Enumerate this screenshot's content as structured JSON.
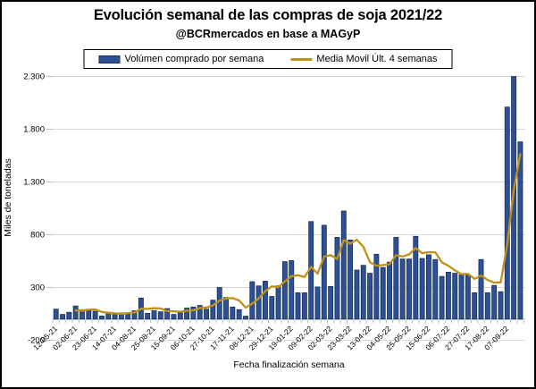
{
  "header": {
    "title": "Evolución semanal de las compras de soja 2021/22",
    "subtitle": "@BCRmercados en base a MAGyP"
  },
  "legend": {
    "bar_label": "Volúmen comprado por semana",
    "line_label": "Media Movil Últ. 4 semanas"
  },
  "axes": {
    "y_label": "Miles de toneladas",
    "x_label": "Fecha finalización semana"
  },
  "colors": {
    "bar_fill": "#2C5197",
    "bar_stroke": "#1C2E52",
    "line": "#C29118",
    "gridline": "#D9D9D9",
    "axis": "#BFBFBF",
    "text": "#000000"
  },
  "chart_data": {
    "type": "bar",
    "title": "Evolución semanal de las compras de soja 2021/22",
    "subtitle": "@BCRmercados en base a MAGyP",
    "xlabel": "Fecha finalización semana",
    "ylabel": "Miles de toneladas",
    "ylim": [
      -200,
      2300
    ],
    "grid": true,
    "legend_position": "top",
    "y_ticks": [
      -200,
      300,
      800,
      1300,
      1800,
      2300
    ],
    "y_tick_labels": [
      "-200",
      "300",
      "800",
      "1.300",
      "1.800",
      "2.300"
    ],
    "x_tick_every": 3,
    "x_tick_labels": [
      "12-05-21",
      "02-06-21",
      "23-06-21",
      "14-07-21",
      "04-08-21",
      "25-08-21",
      "15-09-21",
      "06-10-21",
      "27-10-21",
      "17-11-21",
      "08-12-21",
      "29-12-21",
      "19-01-22",
      "09-02-22",
      "02-03-22",
      "23-03-22",
      "13-04-22",
      "04-05-22",
      "25-05-22",
      "15-06-22",
      "06-07-22",
      "27-07-22",
      "17-08-22",
      "07-09-22"
    ],
    "series": [
      {
        "name": "Volúmen comprado por semana",
        "type": "bar",
        "values": [
          95,
          45,
          65,
          125,
          90,
          80,
          75,
          30,
          60,
          55,
          60,
          55,
          80,
          200,
          55,
          80,
          70,
          100,
          45,
          70,
          105,
          115,
          130,
          95,
          180,
          300,
          205,
          115,
          90,
          28,
          355,
          315,
          360,
          215,
          315,
          545,
          555,
          250,
          250,
          925,
          305,
          890,
          310,
          775,
          1025,
          750,
          465,
          510,
          435,
          615,
          490,
          540,
          775,
          570,
          570,
          785,
          575,
          610,
          565,
          405,
          445,
          435,
          420,
          420,
          250,
          565,
          250,
          320,
          260,
          2010,
          2300,
          1680
        ]
      },
      {
        "name": "Media Movil Últ. 4 semanas",
        "type": "line",
        "values": [
          null,
          null,
          null,
          82.5,
          81.3,
          90,
          92.5,
          68.8,
          61.3,
          55,
          51.3,
          57.5,
          62.5,
          98.8,
          97.5,
          103.8,
          101.3,
          76.3,
          73.8,
          71.3,
          80,
          83.8,
          105,
          111.3,
          130,
          176.3,
          195,
          200,
          177.5,
          109.5,
          147,
          197,
          264.5,
          311.3,
          301.3,
          358.8,
          407.5,
          416.3,
          400,
          495,
          432.5,
          592.5,
          607.5,
          570,
          750,
          715,
          753.8,
          687.5,
          540,
          506.3,
          512.5,
          520,
          605,
          593.8,
          613.8,
          675,
          625,
          635,
          633.8,
          538.8,
          506.3,
          462.5,
          426.3,
          430,
          381.3,
          413.8,
          371.3,
          346.3,
          348.8,
          710,
          1222.5,
          1562.5
        ]
      }
    ]
  }
}
